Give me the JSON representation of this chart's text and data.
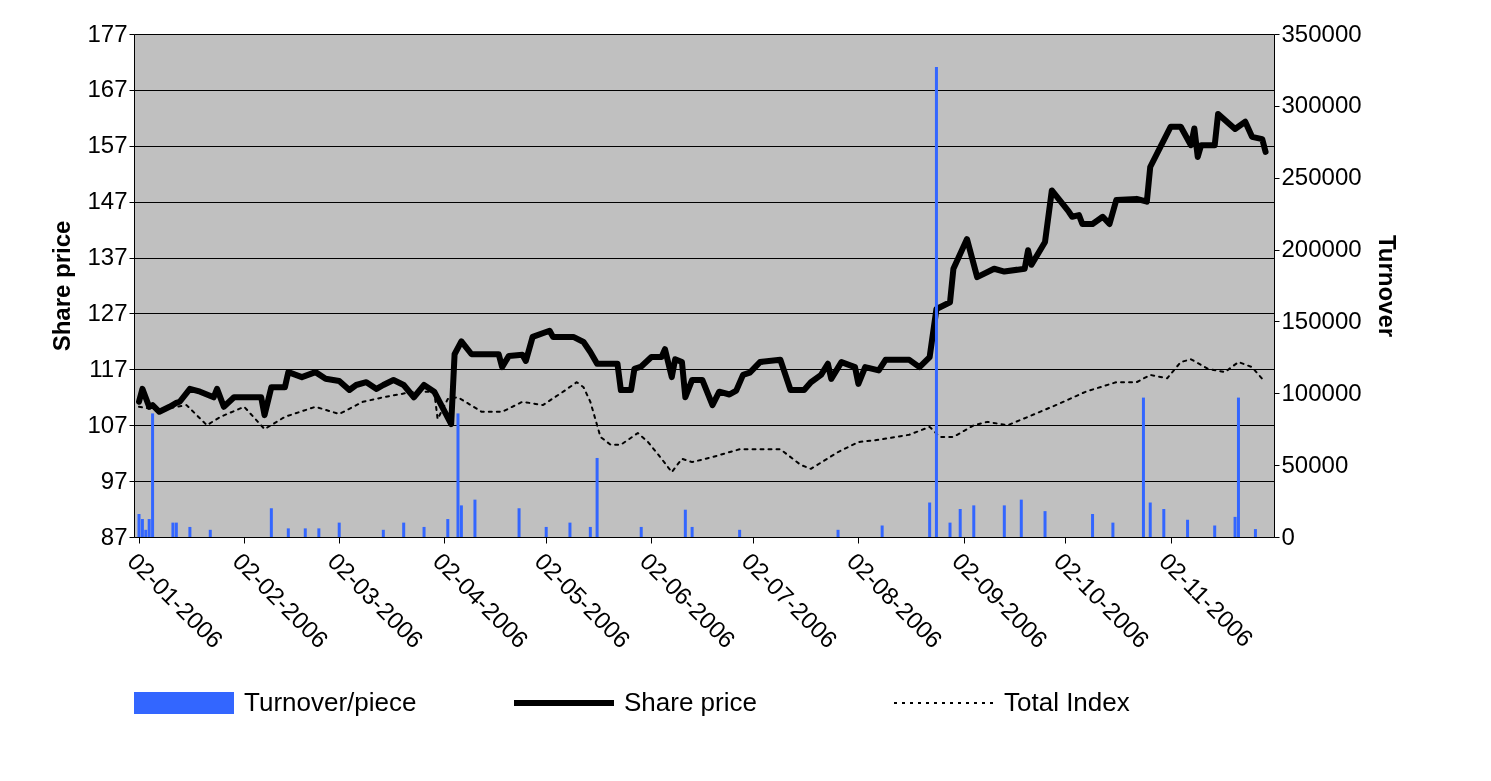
{
  "chart_data": {
    "type": "line",
    "ylabel": "Share price",
    "y2label": "Turnover",
    "grid": "y",
    "legend": "bottom",
    "xlim": [
      "2006-01-02",
      "2006-12-01"
    ],
    "xticks": [
      {
        "value": "2006-01-02",
        "label": "02-01-2006"
      },
      {
        "value": "2006-02-02",
        "label": "02-02-2006"
      },
      {
        "value": "2006-03-02",
        "label": "02-03-2006"
      },
      {
        "value": "2006-04-02",
        "label": "02-04-2006"
      },
      {
        "value": "2006-05-02",
        "label": "02-05-2006"
      },
      {
        "value": "2006-06-02",
        "label": "02-06-2006"
      },
      {
        "value": "2006-07-02",
        "label": "02-07-2006"
      },
      {
        "value": "2006-08-02",
        "label": "02-08-2006"
      },
      {
        "value": "2006-09-02",
        "label": "02-09-2006"
      },
      {
        "value": "2006-10-02",
        "label": "02-10-2006"
      },
      {
        "value": "2006-11-02",
        "label": "02-11-2006"
      }
    ],
    "ylim": [
      87,
      177
    ],
    "yticks": [
      87,
      97,
      107,
      117,
      127,
      137,
      147,
      157,
      167,
      177
    ],
    "y2lim": [
      0,
      350000
    ],
    "y2ticks": [
      0,
      50000,
      100000,
      150000,
      200000,
      250000,
      300000,
      350000
    ],
    "series": [
      {
        "name": "Turnover/piece",
        "type": "bar",
        "axis": "y2",
        "color": "#3366ff",
        "x": [
          "2006-01-02",
          "2006-01-03",
          "2006-01-04",
          "2006-01-05",
          "2006-01-06",
          "2006-01-12",
          "2006-01-13",
          "2006-01-17",
          "2006-01-23",
          "2006-02-10",
          "2006-02-15",
          "2006-02-20",
          "2006-02-24",
          "2006-03-02",
          "2006-03-15",
          "2006-03-21",
          "2006-03-27",
          "2006-04-03",
          "2006-04-06",
          "2006-04-07",
          "2006-04-11",
          "2006-04-24",
          "2006-05-02",
          "2006-05-09",
          "2006-05-15",
          "2006-05-17",
          "2006-05-30",
          "2006-06-12",
          "2006-06-14",
          "2006-06-28",
          "2006-07-27",
          "2006-08-09",
          "2006-08-23",
          "2006-08-25",
          "2006-08-29",
          "2006-09-01",
          "2006-09-05",
          "2006-09-14",
          "2006-09-19",
          "2006-09-26",
          "2006-10-10",
          "2006-10-16",
          "2006-10-25",
          "2006-10-27",
          "2006-10-31",
          "2006-11-07",
          "2006-11-15",
          "2006-11-21",
          "2006-11-22",
          "2006-11-27"
        ],
        "values": [
          16000,
          12500,
          5000,
          12500,
          86000,
          10000,
          10000,
          7000,
          5000,
          20000,
          6000,
          6000,
          6000,
          10000,
          5000,
          10000,
          7000,
          12500,
          86000,
          22000,
          26000,
          20000,
          7000,
          10000,
          7000,
          55000,
          7000,
          19000,
          7000,
          5000,
          5000,
          8000,
          24000,
          327000,
          10000,
          19500,
          22000,
          22000,
          26000,
          18000,
          16000,
          10000,
          97000,
          24000,
          19500,
          12000,
          8000,
          14000,
          97000,
          5500
        ]
      },
      {
        "name": "Share price",
        "line_style": "solid",
        "color": "#000000",
        "x": [
          "2006-01-02",
          "2006-01-03",
          "2006-01-05",
          "2006-01-06",
          "2006-01-08",
          "2006-01-11",
          "2006-01-13",
          "2006-01-14",
          "2006-01-17",
          "2006-01-20",
          "2006-01-24",
          "2006-01-25",
          "2006-01-27",
          "2006-01-30",
          "2006-02-07",
          "2006-02-08",
          "2006-02-10",
          "2006-02-14",
          "2006-02-15",
          "2006-02-19",
          "2006-02-23",
          "2006-02-26",
          "2006-03-02",
          "2006-03-05",
          "2006-03-07",
          "2006-03-10",
          "2006-03-13",
          "2006-03-15",
          "2006-03-18",
          "2006-03-21",
          "2006-03-24",
          "2006-03-27",
          "2006-03-30",
          "2006-04-04",
          "2006-04-05",
          "2006-04-07",
          "2006-04-10",
          "2006-04-18",
          "2006-04-19",
          "2006-04-21",
          "2006-04-25",
          "2006-04-26",
          "2006-04-28",
          "2006-05-03",
          "2006-05-04",
          "2006-05-10",
          "2006-05-13",
          "2006-05-15",
          "2006-05-17",
          "2006-05-23",
          "2006-05-24",
          "2006-05-27",
          "2006-05-28",
          "2006-05-30",
          "2006-06-02",
          "2006-06-05",
          "2006-06-06",
          "2006-06-08",
          "2006-06-09",
          "2006-06-11",
          "2006-06-12",
          "2006-06-14",
          "2006-06-17",
          "2006-06-20",
          "2006-06-22",
          "2006-06-25",
          "2006-06-27",
          "2006-06-29",
          "2006-07-01",
          "2006-07-04",
          "2006-07-10",
          "2006-07-13",
          "2006-07-17",
          "2006-07-19",
          "2006-07-22",
          "2006-07-24",
          "2006-07-25",
          "2006-07-28",
          "2006-08-01",
          "2006-08-02",
          "2006-08-04",
          "2006-08-08",
          "2006-08-10",
          "2006-08-17",
          "2006-08-20",
          "2006-08-23",
          "2006-08-25",
          "2006-08-29",
          "2006-08-30",
          "2006-09-03",
          "2006-09-06",
          "2006-09-11",
          "2006-09-14",
          "2006-09-20",
          "2006-09-21",
          "2006-09-22",
          "2006-09-26",
          "2006-09-28",
          "2006-10-03",
          "2006-10-04",
          "2006-10-06",
          "2006-10-07",
          "2006-10-10",
          "2006-10-13",
          "2006-10-15",
          "2006-10-17",
          "2006-10-23",
          "2006-10-26",
          "2006-10-27",
          "2006-10-30",
          "2006-11-02",
          "2006-11-05",
          "2006-11-08",
          "2006-11-09",
          "2006-11-10",
          "2006-11-11",
          "2006-11-15",
          "2006-11-16",
          "2006-11-18",
          "2006-11-21",
          "2006-11-24",
          "2006-11-26",
          "2006-11-29",
          "2006-11-30"
        ],
        "values": [
          111.2,
          113.5,
          110.3,
          110.6,
          109.4,
          110.3,
          111,
          111.2,
          113.5,
          113,
          112,
          113.5,
          110.3,
          112,
          112,
          108.8,
          113.8,
          113.8,
          116.5,
          115.6,
          116.5,
          115.3,
          114.9,
          113.3,
          114.2,
          114.7,
          113.5,
          114.2,
          115.1,
          114.2,
          112,
          114.2,
          113,
          107.2,
          119.7,
          122,
          119.7,
          119.7,
          117.4,
          119.4,
          119.6,
          118.5,
          122.8,
          123.9,
          122.8,
          122.8,
          121.9,
          120.1,
          118,
          118,
          113.3,
          113.3,
          117.1,
          117.5,
          119.2,
          119.2,
          120.6,
          115.6,
          118.8,
          118.3,
          112,
          115.1,
          115.1,
          110.6,
          113,
          112.5,
          113.2,
          116,
          116.4,
          118.3,
          118.7,
          113.3,
          113.3,
          114.7,
          116,
          118,
          115.3,
          118.3,
          117.4,
          114.4,
          117.4,
          116.8,
          118.7,
          118.7,
          117.4,
          119.2,
          127.8,
          129,
          135,
          140.3,
          133.5,
          135,
          134.5,
          135,
          138.3,
          135.7,
          139.8,
          149,
          145.2,
          144.3,
          144.6,
          143,
          143,
          144.3,
          143,
          147.3,
          147.5,
          147,
          153.2,
          156.8,
          160.4,
          160.4,
          157.1,
          160.1,
          155,
          157.1,
          157.1,
          162.7,
          161.6,
          160,
          161.3,
          158.6,
          158.2,
          155.9
        ]
      },
      {
        "name": "Total Index",
        "line_style": "dotted",
        "color": "#000000",
        "x": [
          "2006-01-02",
          "2006-01-08",
          "2006-01-16",
          "2006-01-22",
          "2006-01-26",
          "2006-02-02",
          "2006-02-08",
          "2006-02-14",
          "2006-02-23",
          "2006-03-02",
          "2006-03-09",
          "2006-03-15",
          "2006-03-24",
          "2006-03-30",
          "2006-03-31",
          "2006-04-03",
          "2006-04-06",
          "2006-04-13",
          "2006-04-19",
          "2006-04-25",
          "2006-05-01",
          "2006-05-07",
          "2006-05-11",
          "2006-05-13",
          "2006-05-15",
          "2006-05-18",
          "2006-05-21",
          "2006-05-24",
          "2006-05-29",
          "2006-06-01",
          "2006-06-05",
          "2006-06-08",
          "2006-06-11",
          "2006-06-14",
          "2006-06-20",
          "2006-06-28",
          "2006-07-06",
          "2006-07-10",
          "2006-07-16",
          "2006-07-19",
          "2006-07-27",
          "2006-08-02",
          "2006-08-08",
          "2006-08-17",
          "2006-08-23",
          "2006-08-26",
          "2006-08-30",
          "2006-09-05",
          "2006-09-09",
          "2006-09-15",
          "2006-09-21",
          "2006-09-30",
          "2006-10-08",
          "2006-10-17",
          "2006-10-23",
          "2006-10-27",
          "2006-11-01",
          "2006-11-05",
          "2006-11-08",
          "2006-11-13",
          "2006-11-18",
          "2006-11-22",
          "2006-11-26",
          "2006-11-29"
        ],
        "values": [
          110.3,
          109.7,
          110.6,
          107,
          108.5,
          110.3,
          106.3,
          108.5,
          110.3,
          109,
          111.2,
          112,
          113,
          113,
          108.1,
          111.7,
          112,
          109.4,
          109.4,
          111.2,
          110.6,
          113,
          114.7,
          113.8,
          111.2,
          104.9,
          103.5,
          103.5,
          105.6,
          104,
          101,
          98.6,
          101,
          100.4,
          101.3,
          102.7,
          102.7,
          102.7,
          99.9,
          99.2,
          102.2,
          104,
          104.4,
          105.3,
          106.7,
          104.9,
          104.9,
          107,
          107.6,
          107,
          108.5,
          110.8,
          113,
          114.7,
          114.7,
          116,
          115.4,
          118.3,
          118.8,
          117.1,
          116.5,
          118.3,
          117.4,
          115.3
        ]
      }
    ]
  }
}
